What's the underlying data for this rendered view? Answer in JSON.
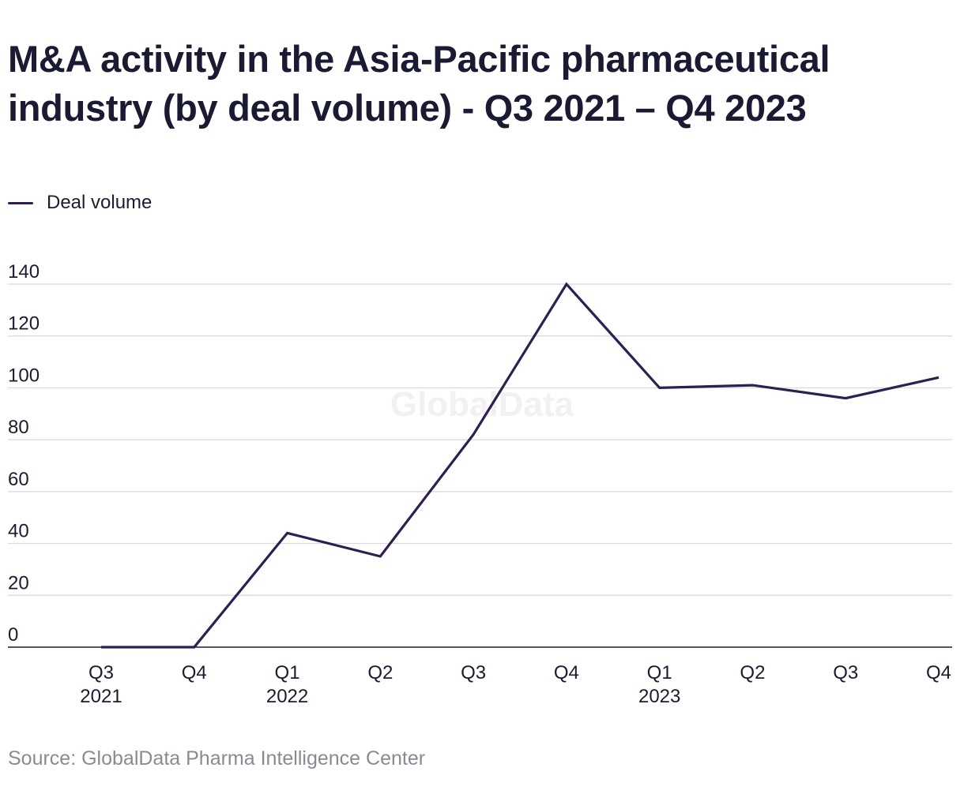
{
  "colors": {
    "series": "#2f1e52",
    "grid": "#d9d9de",
    "axis": "#1b1b32",
    "text": "#1b1b32",
    "source": "#8a8a96",
    "watermark": "#f1f1f4"
  },
  "watermark": "GlobalData",
  "source": "Source: GlobalData Pharma Intelligence Center",
  "chart_data": {
    "type": "line",
    "title": "M&A activity in the Asia-Pacific pharmaceutical industry (by deal volume) - Q3 2021 – Q4 2023",
    "xlabel": "",
    "ylabel": "",
    "ylim": [
      0,
      140
    ],
    "yticks": [
      0,
      20,
      40,
      60,
      80,
      100,
      120,
      140
    ],
    "grid": true,
    "legend_position": "top-left",
    "categories": [
      {
        "q": "Q3",
        "year": "2021"
      },
      {
        "q": "Q4",
        "year": ""
      },
      {
        "q": "Q1",
        "year": "2022"
      },
      {
        "q": "Q2",
        "year": ""
      },
      {
        "q": "Q3",
        "year": ""
      },
      {
        "q": "Q4",
        "year": ""
      },
      {
        "q": "Q1",
        "year": "2023"
      },
      {
        "q": "Q2",
        "year": ""
      },
      {
        "q": "Q3",
        "year": ""
      },
      {
        "q": "Q4",
        "year": ""
      }
    ],
    "series": [
      {
        "name": "Deal volume",
        "values": [
          0,
          0,
          44,
          35,
          82,
          140,
          100,
          101,
          96,
          104
        ]
      }
    ]
  }
}
